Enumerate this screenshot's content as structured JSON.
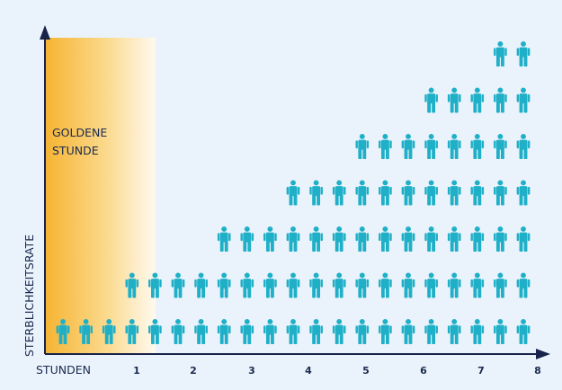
{
  "chart_data": {
    "type": "bar",
    "title": "",
    "xlabel": "STUNDEN",
    "ylabel": "STERBLICHKEITSRATE",
    "annotation": "GOLDENE STUNDE",
    "annotation_lines": [
      "GOLDENE",
      "STUNDE"
    ],
    "tick_labels": [
      "1",
      "2",
      "3",
      "4",
      "5",
      "6",
      "7",
      "8"
    ],
    "columns": 21,
    "column_heights": [
      1,
      1,
      1,
      2,
      2,
      2,
      2,
      3,
      3,
      3,
      4,
      4,
      4,
      5,
      5,
      5,
      6,
      6,
      6,
      7,
      7
    ],
    "unit": "person icons per column",
    "axis_arrows": true,
    "grid": false,
    "legend": "none"
  },
  "colors": {
    "background": "#eaf3fb",
    "person": "#1fb0c8",
    "axis": "#17234a",
    "text": "#1a2a4f",
    "golden_hour_gradient_start": "#f6b432",
    "golden_hour_gradient_end": "#fff9ef"
  },
  "icons": {
    "person": "person-icon"
  }
}
